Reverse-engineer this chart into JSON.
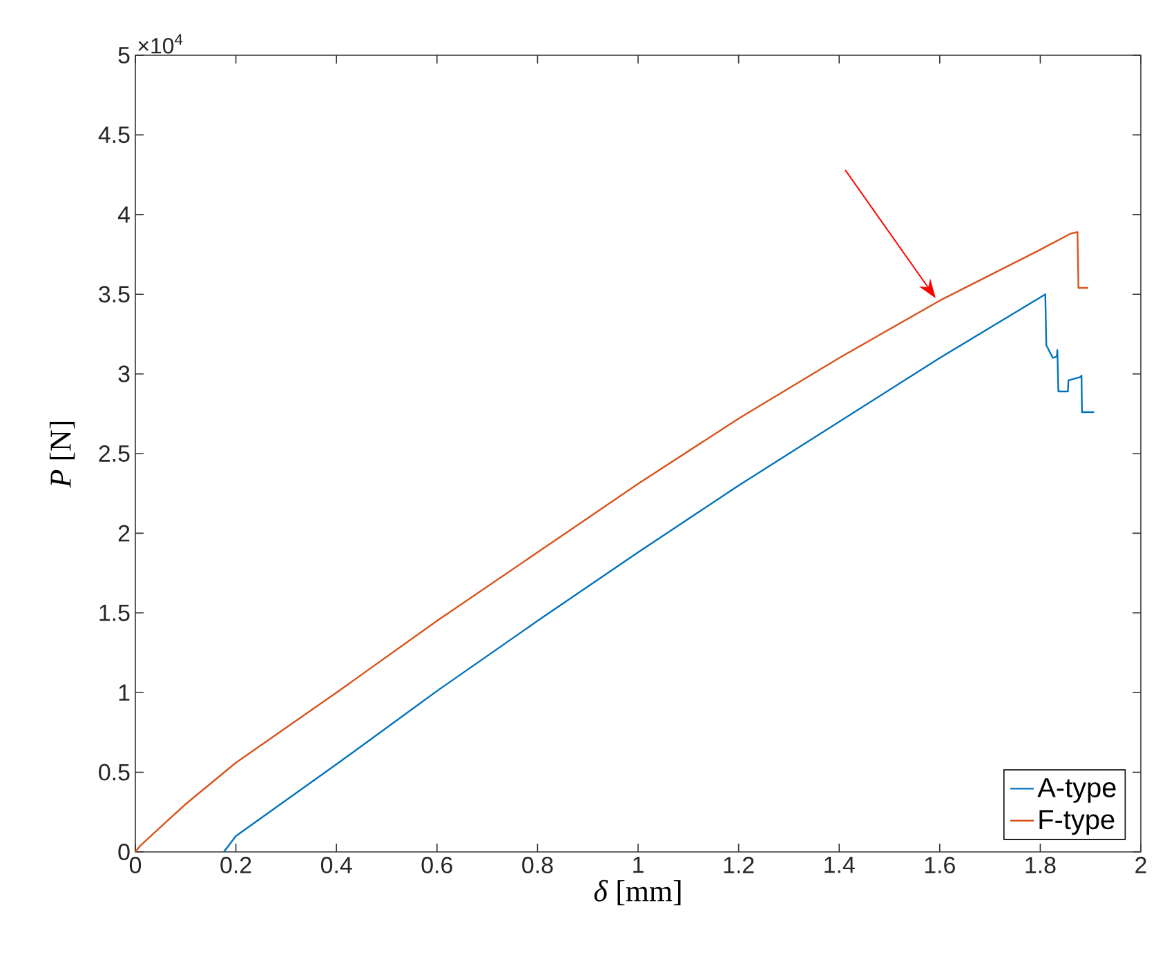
{
  "chart_data": {
    "type": "line",
    "xlabel": "*δ* [mm]",
    "ylabel": "*P* [N]",
    "annotations": [
      "×10$^{4}$"
    ],
    "xlim": [
      0,
      2
    ],
    "xticks": [
      0,
      0.2,
      0.4,
      0.6,
      0.8,
      1,
      1.2,
      1.4,
      1.6,
      1.8,
      2
    ],
    "ylim": [
      0,
      5
    ],
    "yticks": [
      0,
      0.5,
      1,
      1.5,
      2,
      2.5,
      3,
      3.5,
      4,
      4.5,
      5
    ],
    "grid": false,
    "legend": "bottom right",
    "marker": "none",
    "line_style": "solid",
    "series": [
      {
        "name": "A-type",
        "color": "#0072bd",
        "x": [
          0.176,
          0.2,
          0.4,
          0.6,
          0.8,
          1.0,
          1.2,
          1.4,
          1.6,
          1.8,
          1.81,
          1.812,
          1.825,
          1.833,
          1.834,
          1.836,
          1.855,
          1.856,
          1.88,
          1.882,
          1.883,
          1.907
        ],
        "values": [
          0,
          0.1,
          0.55,
          1.01,
          1.45,
          1.88,
          2.3,
          2.7,
          3.1,
          3.48,
          3.5,
          3.18,
          3.1,
          3.11,
          3.15,
          2.89,
          2.89,
          2.96,
          2.98,
          2.99,
          2.76,
          2.76
        ]
      },
      {
        "name": "F-type",
        "color": "#d95319",
        "x": [
          0,
          0.01,
          0.1,
          0.2,
          0.4,
          0.6,
          0.8,
          1.0,
          1.2,
          1.4,
          1.6,
          1.8,
          1.86,
          1.874,
          1.876,
          1.895
        ],
        "values": [
          0,
          0.04,
          0.3,
          0.56,
          1.0,
          1.45,
          1.88,
          2.31,
          2.72,
          3.1,
          3.46,
          3.78,
          3.88,
          3.89,
          3.54,
          3.54
        ]
      }
    ]
  }
}
